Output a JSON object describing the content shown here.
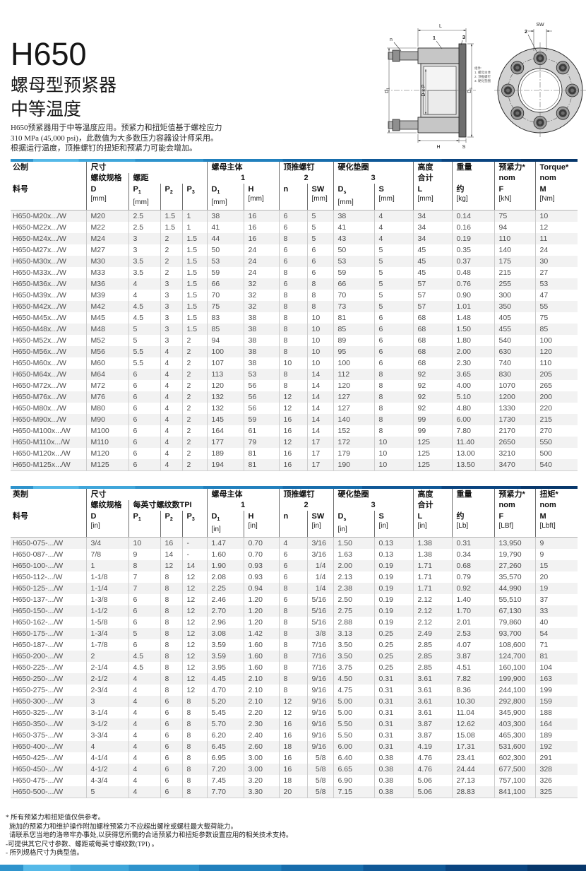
{
  "page": {
    "product": "H650",
    "subtitle_line1": "螺母型预紧器",
    "subtitle_line2": "中等温度",
    "intro_lines": [
      "H650预紧器用于中等温度应用。预紧力和扭矩值基于螺栓应力",
      "310 MPa (45,000 psi)，此数值为大多数压力容器设计师采用。",
      "根据运行温度，顶推螺钉的扭矩和预紧力可能会增加。"
    ]
  },
  "brand": {
    "bar_colors": [
      "#55b9e8",
      "#2e93cc",
      "#2180bd",
      "#0f5897",
      "#07376b"
    ]
  },
  "diagram": {
    "side": {
      "L": "L",
      "n": "n",
      "item1": "1",
      "item3": "3",
      "D1_base": "D",
      "D1_sub": "1",
      "DxP": "D x P",
      "Ds_base": "D",
      "Ds_sub": "s",
      "H": "H",
      "S": "S"
    },
    "front": {
      "item2": "2",
      "SW": "SW"
    },
    "legend": [
      "组件:",
      "1. 螺母主体",
      "2. 顶推螺钉",
      "3. 硬化垫圈"
    ]
  },
  "metric": {
    "region": "公制",
    "part_col": "料号",
    "groups": {
      "size": "尺寸",
      "thread": "螺纹规格",
      "pitch": "螺距",
      "nut": "螺母主体",
      "nut_n": "1",
      "jack": "顶推螺钉",
      "jack_n": "2",
      "washer": "硬化垫圈",
      "washer_n": "3",
      "height": "高度",
      "height_sub": "合计",
      "weight": "重量",
      "preload": "预紧力*",
      "preload_sub": "nom",
      "torque": "Torque*",
      "torque_sub": "nom"
    },
    "cols": [
      {
        "l": "D",
        "s": "",
        "u": "[mm]"
      },
      {
        "l": "P",
        "s": "1",
        "u": "[mm]"
      },
      {
        "l": "P",
        "s": "2",
        "u": ""
      },
      {
        "l": "P",
        "s": "3",
        "u": ""
      },
      {
        "l": "D",
        "s": "1",
        "u": "[mm]"
      },
      {
        "l": "H",
        "s": "",
        "u": "[mm]"
      },
      {
        "l": "n",
        "s": "",
        "u": ""
      },
      {
        "l": "SW",
        "s": "",
        "u": "[mm]"
      },
      {
        "l": "D",
        "s": "s",
        "u": "[mm]"
      },
      {
        "l": "S",
        "s": "",
        "u": "[mm]"
      },
      {
        "l": "L",
        "s": "",
        "u": "[mm]"
      },
      {
        "l": "约",
        "s": "",
        "u": "[kg]"
      },
      {
        "l": "F",
        "s": "",
        "u": "[kN]"
      },
      {
        "l": "M",
        "s": "",
        "u": "[Nm]"
      }
    ],
    "rows": [
      [
        "H650-M20x.../W",
        "M20",
        "2.5",
        "1.5",
        "1",
        "38",
        "16",
        "6",
        "5",
        "38",
        "4",
        "34",
        "0.14",
        "75",
        "10"
      ],
      [
        "H650-M22x.../W",
        "M22",
        "2.5",
        "1.5",
        "1",
        "41",
        "16",
        "6",
        "5",
        "41",
        "4",
        "34",
        "0.16",
        "94",
        "12"
      ],
      [
        "H650-M24x.../W",
        "M24",
        "3",
        "2",
        "1.5",
        "44",
        "16",
        "8",
        "5",
        "43",
        "4",
        "34",
        "0.19",
        "110",
        "11"
      ],
      [
        "H650-M27x.../W",
        "M27",
        "3",
        "2",
        "1.5",
        "50",
        "24",
        "6",
        "6",
        "50",
        "5",
        "45",
        "0.35",
        "140",
        "24"
      ],
      [
        "H650-M30x.../W",
        "M30",
        "3.5",
        "2",
        "1.5",
        "53",
        "24",
        "6",
        "6",
        "53",
        "5",
        "45",
        "0.37",
        "175",
        "30"
      ],
      [
        "H650-M33x.../W",
        "M33",
        "3.5",
        "2",
        "1.5",
        "59",
        "24",
        "8",
        "6",
        "59",
        "5",
        "45",
        "0.48",
        "215",
        "27"
      ],
      [
        "H650-M36x.../W",
        "M36",
        "4",
        "3",
        "1.5",
        "66",
        "32",
        "6",
        "8",
        "66",
        "5",
        "57",
        "0.76",
        "255",
        "53"
      ],
      [
        "H650-M39x.../W",
        "M39",
        "4",
        "3",
        "1.5",
        "70",
        "32",
        "8",
        "8",
        "70",
        "5",
        "57",
        "0.90",
        "300",
        "47"
      ],
      [
        "H650-M42x.../W",
        "M42",
        "4.5",
        "3",
        "1.5",
        "75",
        "32",
        "8",
        "8",
        "73",
        "5",
        "57",
        "1.01",
        "350",
        "55"
      ],
      [
        "H650-M45x.../W",
        "M45",
        "4.5",
        "3",
        "1.5",
        "83",
        "38",
        "8",
        "10",
        "81",
        "6",
        "68",
        "1.48",
        "405",
        "75"
      ],
      [
        "H650-M48x.../W",
        "M48",
        "5",
        "3",
        "1.5",
        "85",
        "38",
        "8",
        "10",
        "85",
        "6",
        "68",
        "1.50",
        "455",
        "85"
      ],
      [
        "H650-M52x.../W",
        "M52",
        "5",
        "3",
        "2",
        "94",
        "38",
        "8",
        "10",
        "89",
        "6",
        "68",
        "1.80",
        "540",
        "100"
      ],
      [
        "H650-M56x.../W",
        "M56",
        "5.5",
        "4",
        "2",
        "100",
        "38",
        "8",
        "10",
        "95",
        "6",
        "68",
        "2.00",
        "630",
        "120"
      ],
      [
        "H650-M60x.../W",
        "M60",
        "5.5",
        "4",
        "2",
        "107",
        "38",
        "10",
        "10",
        "100",
        "6",
        "68",
        "2.30",
        "740",
        "110"
      ],
      [
        "H650-M64x.../W",
        "M64",
        "6",
        "4",
        "2",
        "113",
        "53",
        "8",
        "14",
        "112",
        "8",
        "92",
        "3.65",
        "830",
        "205"
      ],
      [
        "H650-M72x.../W",
        "M72",
        "6",
        "4",
        "2",
        "120",
        "56",
        "8",
        "14",
        "120",
        "8",
        "92",
        "4.00",
        "1070",
        "265"
      ],
      [
        "H650-M76x.../W",
        "M76",
        "6",
        "4",
        "2",
        "132",
        "56",
        "12",
        "14",
        "127",
        "8",
        "92",
        "5.10",
        "1200",
        "200"
      ],
      [
        "H650-M80x.../W",
        "M80",
        "6",
        "4",
        "2",
        "132",
        "56",
        "12",
        "14",
        "127",
        "8",
        "92",
        "4.80",
        "1330",
        "220"
      ],
      [
        "H650-M90x.../W",
        "M90",
        "6",
        "4",
        "2",
        "145",
        "59",
        "16",
        "14",
        "140",
        "8",
        "99",
        "6.00",
        "1730",
        "215"
      ],
      [
        "H650-M100x.../W",
        "M100",
        "6",
        "4",
        "2",
        "164",
        "61",
        "16",
        "14",
        "152",
        "8",
        "99",
        "7.80",
        "2170",
        "270"
      ],
      [
        "H650-M110x.../W",
        "M110",
        "6",
        "4",
        "2",
        "177",
        "79",
        "12",
        "17",
        "172",
        "10",
        "125",
        "11.40",
        "2650",
        "550"
      ],
      [
        "H650-M120x.../W",
        "M120",
        "6",
        "4",
        "2",
        "189",
        "81",
        "16",
        "17",
        "179",
        "10",
        "125",
        "13.00",
        "3210",
        "500"
      ],
      [
        "H650-M125x.../W",
        "M125",
        "6",
        "4",
        "2",
        "194",
        "81",
        "16",
        "17",
        "190",
        "10",
        "125",
        "13.50",
        "3470",
        "540"
      ]
    ]
  },
  "imperial": {
    "region": "英制",
    "part_col": "料号",
    "groups": {
      "size": "尺寸",
      "thread": "螺纹规格",
      "pitch": "每英寸螺纹数TPI",
      "nut": "螺母主体",
      "nut_n": "1",
      "jack": "顶推螺钉",
      "jack_n": "2",
      "washer": "硬化垫圈",
      "washer_n": "3",
      "height": "高度",
      "height_sub": "合计",
      "weight": "重量",
      "preload": "预紧力*",
      "preload_sub": "nom",
      "torque": "扭矩*",
      "torque_sub": "nom"
    },
    "cols": [
      {
        "l": "D",
        "s": "",
        "u": "[in]"
      },
      {
        "l": "P",
        "s": "1",
        "u": ""
      },
      {
        "l": "P",
        "s": "2",
        "u": ""
      },
      {
        "l": "P",
        "s": "3",
        "u": ""
      },
      {
        "l": "D",
        "s": "1",
        "u": "[in]"
      },
      {
        "l": "H",
        "s": "",
        "u": "[in]"
      },
      {
        "l": "n",
        "s": "",
        "u": ""
      },
      {
        "l": "SW",
        "s": "",
        "u": "[in]"
      },
      {
        "l": "D",
        "s": "s",
        "u": "[in]"
      },
      {
        "l": "S",
        "s": "",
        "u": "[in]"
      },
      {
        "l": "L",
        "s": "",
        "u": "[in]"
      },
      {
        "l": "约",
        "s": "",
        "u": "[Lb]"
      },
      {
        "l": "F",
        "s": "",
        "u": "[LBf]"
      },
      {
        "l": "M",
        "s": "",
        "u": "[Lbft]"
      }
    ],
    "rows": [
      [
        "H650-075-.../W",
        "3/4",
        "10",
        "16",
        "-",
        "1.47",
        "0.70",
        "4",
        "3/16",
        "1.50",
        "0.13",
        "1.38",
        "0.31",
        "13,950",
        "9"
      ],
      [
        "H650-087-.../W",
        "7/8",
        "9",
        "14",
        "-",
        "1.60",
        "0.70",
        "6",
        "3/16",
        "1.63",
        "0.13",
        "1.38",
        "0.34",
        "19,790",
        "9"
      ],
      [
        "H650-100-.../W",
        "1",
        "8",
        "12",
        "14",
        "1.90",
        "0.93",
        "6",
        "1/4",
        "2.00",
        "0.19",
        "1.71",
        "0.68",
        "27,260",
        "15"
      ],
      [
        "H650-112-.../W",
        "1-1/8",
        "7",
        "8",
        "12",
        "2.08",
        "0.93",
        "6",
        "1/4",
        "2.13",
        "0.19",
        "1.71",
        "0.79",
        "35,570",
        "20"
      ],
      [
        "H650-125-.../W",
        "1-1/4",
        "7",
        "8",
        "12",
        "2.25",
        "0.94",
        "8",
        "1/4",
        "2.38",
        "0.19",
        "1.71",
        "0.92",
        "44,990",
        "19"
      ],
      [
        "H650-137-.../W",
        "1-3/8",
        "6",
        "8",
        "12",
        "2.46",
        "1.20",
        "6",
        "5/16",
        "2.50",
        "0.19",
        "2.12",
        "1.40",
        "55,510",
        "37"
      ],
      [
        "H650-150-.../W",
        "1-1/2",
        "6",
        "8",
        "12",
        "2.70",
        "1.20",
        "8",
        "5/16",
        "2.75",
        "0.19",
        "2.12",
        "1.70",
        "67,130",
        "33"
      ],
      [
        "H650-162-.../W",
        "1-5/8",
        "6",
        "8",
        "12",
        "2.96",
        "1.20",
        "8",
        "5/16",
        "2.88",
        "0.19",
        "2.12",
        "2.01",
        "79,860",
        "40"
      ],
      [
        "H650-175-.../W",
        "1-3/4",
        "5",
        "8",
        "12",
        "3.08",
        "1.42",
        "8",
        "3/8",
        "3.13",
        "0.25",
        "2.49",
        "2.53",
        "93,700",
        "54"
      ],
      [
        "H650-187-.../W",
        "1-7/8",
        "6",
        "8",
        "12",
        "3.59",
        "1.60",
        "8",
        "7/16",
        "3.50",
        "0.25",
        "2.85",
        "4.07",
        "108,600",
        "71"
      ],
      [
        "H650-200-.../W",
        "2",
        "4.5",
        "8",
        "12",
        "3.59",
        "1.60",
        "8",
        "7/16",
        "3.50",
        "0.25",
        "2.85",
        "3.87",
        "124,700",
        "81"
      ],
      [
        "H650-225-.../W",
        "2-1/4",
        "4.5",
        "8",
        "12",
        "3.95",
        "1.60",
        "8",
        "7/16",
        "3.75",
        "0.25",
        "2.85",
        "4.51",
        "160,100",
        "104"
      ],
      [
        "H650-250-.../W",
        "2-1/2",
        "4",
        "8",
        "12",
        "4.45",
        "2.10",
        "8",
        "9/16",
        "4.50",
        "0.31",
        "3.61",
        "7.82",
        "199,900",
        "163"
      ],
      [
        "H650-275-.../W",
        "2-3/4",
        "4",
        "8",
        "12",
        "4.70",
        "2.10",
        "8",
        "9/16",
        "4.75",
        "0.31",
        "3.61",
        "8.36",
        "244,100",
        "199"
      ],
      [
        "H650-300-.../W",
        "3",
        "4",
        "6",
        "8",
        "5.20",
        "2.10",
        "12",
        "9/16",
        "5.00",
        "0.31",
        "3.61",
        "10.30",
        "292,800",
        "159"
      ],
      [
        "H650-325-.../W",
        "3-1/4",
        "4",
        "6",
        "8",
        "5.45",
        "2.20",
        "12",
        "9/16",
        "5.00",
        "0.31",
        "3.61",
        "11.04",
        "345,900",
        "188"
      ],
      [
        "H650-350-.../W",
        "3-1/2",
        "4",
        "6",
        "8",
        "5.70",
        "2.30",
        "16",
        "9/16",
        "5.50",
        "0.31",
        "3.87",
        "12.62",
        "403,300",
        "164"
      ],
      [
        "H650-375-.../W",
        "3-3/4",
        "4",
        "6",
        "8",
        "6.20",
        "2.40",
        "16",
        "9/16",
        "5.50",
        "0.31",
        "3.87",
        "15.08",
        "465,300",
        "189"
      ],
      [
        "H650-400-.../W",
        "4",
        "4",
        "6",
        "8",
        "6.45",
        "2.60",
        "18",
        "9/16",
        "6.00",
        "0.31",
        "4.19",
        "17.31",
        "531,600",
        "192"
      ],
      [
        "H650-425-.../W",
        "4-1/4",
        "4",
        "6",
        "8",
        "6.95",
        "3.00",
        "16",
        "5/8",
        "6.40",
        "0.38",
        "4.76",
        "23.41",
        "602,300",
        "291"
      ],
      [
        "H650-450-.../W",
        "4-1/2",
        "4",
        "6",
        "8",
        "7.20",
        "3.00",
        "16",
        "5/8",
        "6.65",
        "0.38",
        "4.76",
        "24.44",
        "677,500",
        "328"
      ],
      [
        "H650-475-.../W",
        "4-3/4",
        "4",
        "6",
        "8",
        "7.45",
        "3.20",
        "18",
        "5/8",
        "6.90",
        "0.38",
        "5.06",
        "27.13",
        "757,100",
        "326"
      ],
      [
        "H650-500-.../W",
        "5",
        "4",
        "6",
        "8",
        "7.70",
        "3.30",
        "20",
        "5/8",
        "7.15",
        "0.38",
        "5.06",
        "28.83",
        "841,100",
        "325"
      ]
    ]
  },
  "footnotes": [
    "* 所有预紧力和扭矩值仅供参考。",
    "施加的预紧力和维护操作附加螺栓预紧力不应超出螺栓或螺柱最大载荷能力。",
    "请联系您当地的洛帝牢办事处,以获得您所需的合适预紧力和扭矩参数设置应用的相关技术支持。",
    "-可提供其它尺寸参数、螺距或每英寸螺纹数(TPI) 。",
    "- 所列规格尺寸为典型值。"
  ]
}
